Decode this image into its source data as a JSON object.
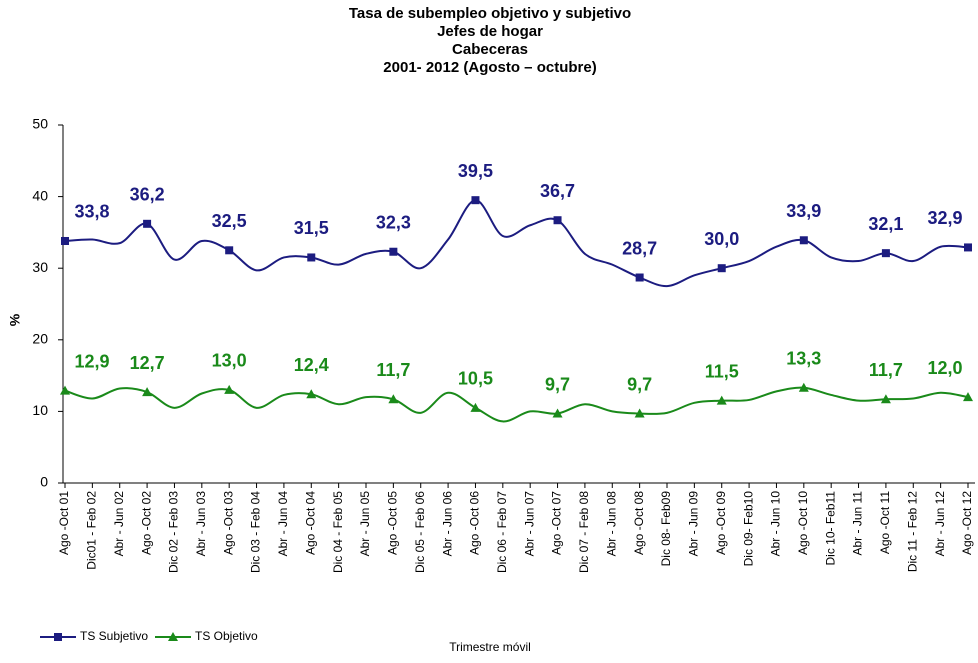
{
  "chart_data": {
    "type": "line",
    "title": [
      "Tasa de subempleo objetivo y subjetivo",
      "Jefes de hogar",
      "Cabeceras",
      "2001- 2012 (Agosto – octubre)"
    ],
    "ylabel": "%",
    "xlabel": "Trimestre móvil",
    "categories": [
      "Ago -Oct 01",
      "Dic01 - Feb 02",
      "Abr - Jun 02",
      "Ago -Oct 02",
      "Dic 02 - Feb 03",
      "Abr - Jun 03",
      "Ago -Oct 03",
      "Dic 03 - Feb 04",
      "Abr - Jun 04",
      "Ago -Oct 04",
      "Dic 04 - Feb 05",
      "Abr - Jun 05",
      "Ago -Oct 05",
      "Dic 05 - Feb 06",
      "Abr - Jun 06",
      "Ago -Oct 06",
      "Dic 06 - Feb 07",
      "Abr - Jun 07",
      "Ago -Oct 07",
      "Dic 07 - Feb 08",
      "Abr - Jun 08",
      "Ago -Oct 08",
      "Dic 08- Feb09",
      "Abr - Jun 09",
      "Ago -Oct 09",
      "Dic 09- Feb10",
      "Abr - Jun 10",
      "Ago -Oct 10",
      "Dic 10- Feb11",
      "Abr - Jun 11",
      "Ago -Oct 11",
      "Dic 11 - Feb 12",
      "Abr - Jun 12",
      "Ago -Oct 12"
    ],
    "series": [
      {
        "name": "TS Subjetivo",
        "color": "#1c1c80",
        "marker": "square",
        "values": [
          33.8,
          34.0,
          33.5,
          36.2,
          31.2,
          33.8,
          32.5,
          29.7,
          31.5,
          31.5,
          30.5,
          32.0,
          32.3,
          30.0,
          34.0,
          39.5,
          34.5,
          36.0,
          36.7,
          32.0,
          30.5,
          28.7,
          27.5,
          29.0,
          30.0,
          31.0,
          33.0,
          33.9,
          31.5,
          31.0,
          32.1,
          31.0,
          33.0,
          32.9
        ],
        "value_labels": [
          "33,8",
          null,
          null,
          "36,2",
          null,
          null,
          "32,5",
          null,
          null,
          "31,5",
          null,
          null,
          "32,3",
          null,
          null,
          "39,5",
          null,
          null,
          "36,7",
          null,
          null,
          "28,7",
          null,
          null,
          "30,0",
          null,
          null,
          "33,9",
          null,
          null,
          "32,1",
          null,
          null,
          "32,9"
        ]
      },
      {
        "name": "TS Objetivo",
        "color": "#1a8a1a",
        "marker": "triangle",
        "values": [
          12.9,
          11.8,
          13.2,
          12.7,
          10.5,
          12.5,
          13.0,
          10.5,
          12.3,
          12.4,
          11.0,
          12.0,
          11.7,
          9.8,
          12.6,
          10.5,
          8.6,
          10.0,
          9.7,
          11.0,
          10.0,
          9.7,
          9.8,
          11.2,
          11.5,
          11.6,
          12.8,
          13.3,
          12.3,
          11.5,
          11.7,
          11.8,
          12.6,
          12.0
        ],
        "value_labels": [
          "12,9",
          null,
          null,
          "12,7",
          null,
          null,
          "13,0",
          null,
          null,
          "12,4",
          null,
          null,
          "11,7",
          null,
          null,
          "10,5",
          null,
          null,
          "9,7",
          null,
          null,
          "9,7",
          null,
          null,
          "11,5",
          null,
          null,
          "13,3",
          null,
          null,
          "11,7",
          null,
          null,
          "12,0"
        ]
      }
    ],
    "ylim": [
      0,
      50
    ],
    "yticks": [
      0,
      10,
      20,
      30,
      40,
      50
    ],
    "grid": false,
    "legend": "bottom-left"
  }
}
